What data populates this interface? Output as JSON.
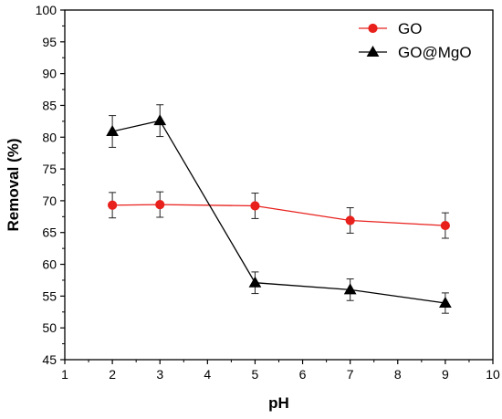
{
  "chart_data": {
    "type": "line",
    "title": "",
    "xlabel": "pH",
    "ylabel": "Removal (%)",
    "xlim": [
      1,
      10
    ],
    "ylim": [
      45,
      100
    ],
    "xticks": [
      1,
      2,
      3,
      4,
      5,
      6,
      7,
      8,
      9,
      10
    ],
    "yticks": [
      45,
      50,
      55,
      60,
      65,
      70,
      75,
      80,
      85,
      90,
      95,
      100
    ],
    "grid": false,
    "legend_position": "top-right",
    "series": [
      {
        "name": "GO",
        "color": "#e8211d",
        "marker": "circle",
        "x": [
          2,
          3,
          5,
          7,
          9
        ],
        "y": [
          69.3,
          69.4,
          69.2,
          66.9,
          66.1
        ],
        "error": [
          2.0,
          2.0,
          2.0,
          2.0,
          2.0
        ]
      },
      {
        "name": "GO@MgO",
        "color": "#000000",
        "marker": "triangle",
        "x": [
          2,
          3,
          5,
          7,
          9
        ],
        "y": [
          80.9,
          82.6,
          57.1,
          56.0,
          53.9
        ],
        "error": [
          2.5,
          2.5,
          1.7,
          1.7,
          1.6
        ]
      }
    ]
  }
}
